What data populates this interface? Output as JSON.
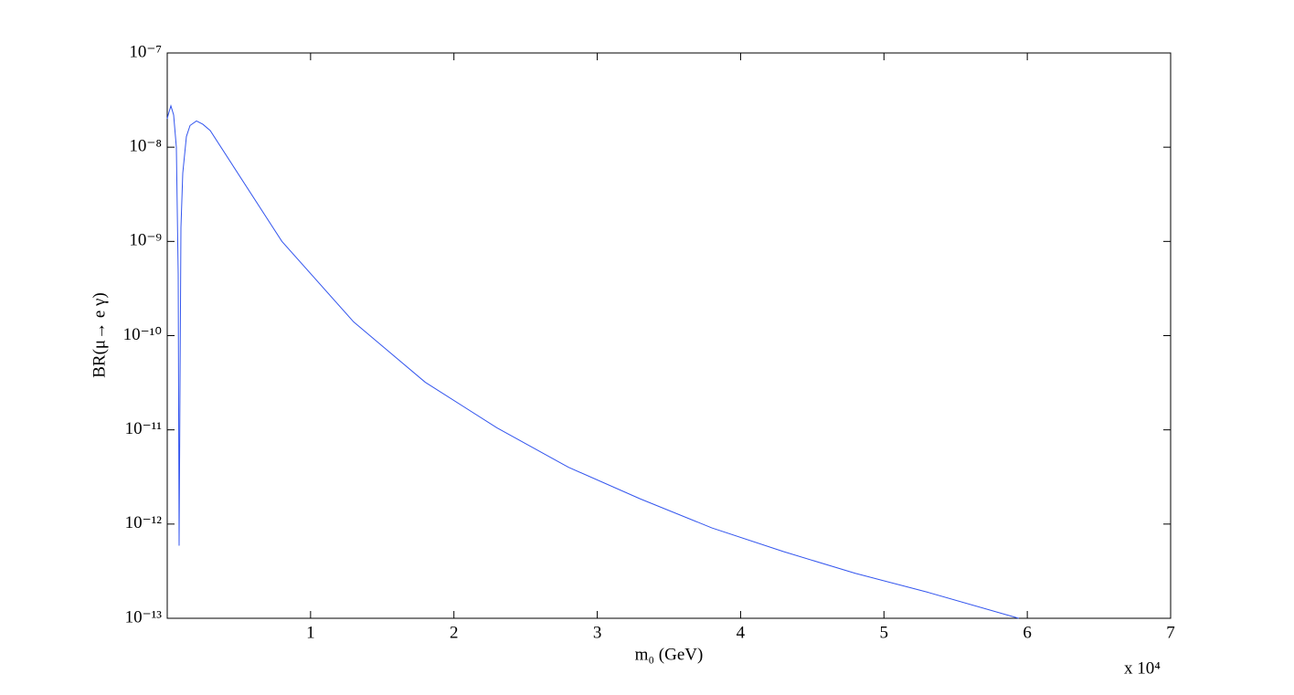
{
  "chart_data": {
    "type": "line",
    "ylabel": "BR(μ→ e γ)",
    "xlabel": "m₀ (GeV)",
    "annotation": "x 10⁴",
    "color": "#3355ee",
    "log_y": true,
    "x": [
      0,
      64,
      255,
      446,
      637,
      765,
      828,
      956,
      1083,
      1338,
      1593,
      2040,
      2486,
      3000,
      8000,
      13000,
      18000,
      23000,
      28000,
      33000,
      38000,
      43000,
      48000,
      53000,
      59400
    ],
    "values": [
      2e-08,
      2.2e-08,
      2.75e-08,
      2.2e-08,
      1e-08,
      4.5e-10,
      5.9e-13,
      1.4e-09,
      5.3e-09,
      1.3e-08,
      1.7e-08,
      1.9e-08,
      1.75e-08,
      1.5e-08,
      1e-09,
      1.4e-10,
      3.2e-11,
      1.05e-11,
      4e-12,
      1.85e-12,
      9.1e-13,
      5.1e-13,
      3e-13,
      1.9e-13,
      1e-13
    ],
    "xlim": [
      0,
      70000
    ],
    "xticks": [
      {
        "value": 10000,
        "label": "1"
      },
      {
        "value": 20000,
        "label": "2"
      },
      {
        "value": 30000,
        "label": "3"
      },
      {
        "value": 40000,
        "label": "4"
      },
      {
        "value": 50000,
        "label": "5"
      },
      {
        "value": 60000,
        "label": "6"
      },
      {
        "value": 70000,
        "label": "7"
      }
    ],
    "ylim": [
      1e-13,
      1e-07
    ],
    "yticks": [
      {
        "value": 1e-13,
        "label": "10⁻¹³"
      },
      {
        "value": 1e-12,
        "label": "10⁻¹²"
      },
      {
        "value": 1e-11,
        "label": "10⁻¹¹"
      },
      {
        "value": 1e-10,
        "label": "10⁻¹⁰"
      },
      {
        "value": 1e-09,
        "label": "10⁻⁹"
      },
      {
        "value": 1e-08,
        "label": "10⁻⁸"
      },
      {
        "value": 1e-07,
        "label": "10⁻⁷"
      }
    ]
  }
}
